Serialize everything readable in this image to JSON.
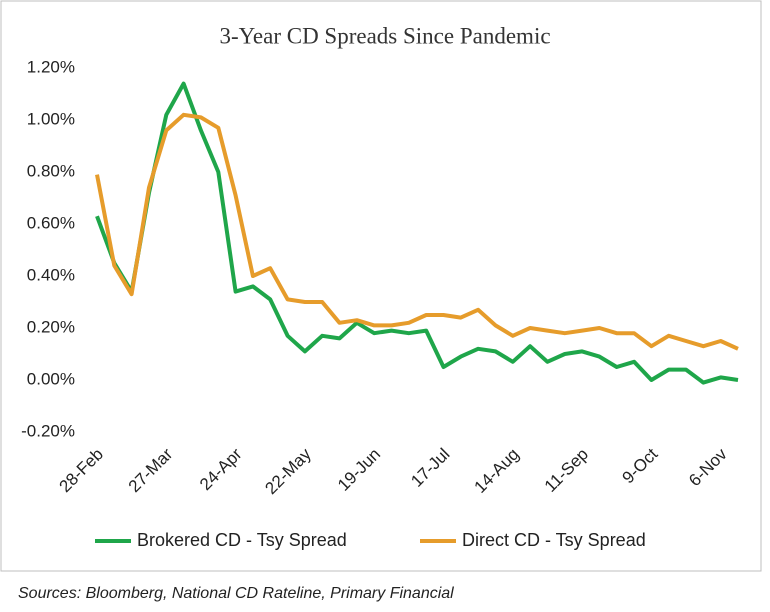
{
  "chart_data": {
    "type": "line",
    "title": "3-Year CD Spreads Since Pandemic",
    "categories": [
      "28-Feb",
      null,
      null,
      null,
      "27-Mar",
      null,
      null,
      null,
      "24-Apr",
      null,
      null,
      null,
      "22-May",
      null,
      null,
      null,
      "19-Jun",
      null,
      null,
      null,
      "17-Jul",
      null,
      null,
      null,
      "14-Aug",
      null,
      null,
      null,
      "11-Sep",
      null,
      null,
      null,
      "9-Oct",
      null,
      null,
      null,
      "6-Nov",
      null
    ],
    "series": [
      {
        "name": "Brokered CD - Tsy Spread",
        "color": "#1fa64a",
        "values": [
          0.63,
          0.45,
          0.34,
          0.72,
          1.02,
          1.14,
          0.96,
          0.8,
          0.34,
          0.36,
          0.31,
          0.17,
          0.11,
          0.17,
          0.16,
          0.22,
          0.18,
          0.19,
          0.18,
          0.19,
          0.05,
          0.09,
          0.12,
          0.11,
          0.07,
          0.13,
          0.07,
          0.1,
          0.11,
          0.09,
          0.05,
          0.07,
          0.0,
          0.04,
          0.04,
          -0.01,
          0.01,
          0.0
        ]
      },
      {
        "name": "Direct CD - Tsy Spread",
        "color": "#e69c2b",
        "values": [
          0.79,
          0.44,
          0.33,
          0.74,
          0.96,
          1.02,
          1.01,
          0.97,
          0.71,
          0.4,
          0.43,
          0.31,
          0.3,
          0.3,
          0.22,
          0.23,
          0.21,
          0.21,
          0.22,
          0.25,
          0.25,
          0.24,
          0.27,
          0.21,
          0.17,
          0.2,
          0.19,
          0.18,
          0.19,
          0.2,
          0.18,
          0.18,
          0.13,
          0.17,
          0.15,
          0.13,
          0.15,
          0.12
        ]
      }
    ],
    "ylim": [
      -0.2,
      1.2
    ],
    "yticks": [
      {
        "value": -0.2,
        "label": "-0.20%"
      },
      {
        "value": 0,
        "label": "0.00%"
      },
      {
        "value": 0.2,
        "label": "0.20%"
      },
      {
        "value": 0.4,
        "label": "0.40%"
      },
      {
        "value": 0.6,
        "label": "0.60%"
      },
      {
        "value": 0.8,
        "label": "0.80%"
      },
      {
        "value": 1.0,
        "label": "1.00%"
      },
      {
        "value": 1.2,
        "label": "1.20%"
      }
    ],
    "grid": false,
    "source": "Sources: Bloomberg, National CD Rateline, Primary Financial"
  }
}
